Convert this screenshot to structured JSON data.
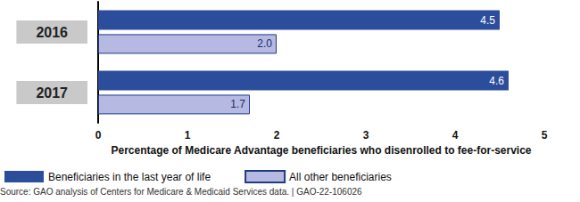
{
  "chart_data": {
    "type": "bar",
    "orientation": "horizontal",
    "categories": [
      "2016",
      "2017"
    ],
    "series": [
      {
        "name": "Beneficiaries in the last year of life",
        "color": "#2c4c9c",
        "values": [
          4.5,
          4.6
        ],
        "value_labels": [
          "4.5",
          "4.6"
        ]
      },
      {
        "name": "All other beneficiaries",
        "color": "#b6b9e2",
        "values": [
          2.0,
          1.7
        ],
        "value_labels": [
          "2.0",
          "1.7"
        ]
      }
    ],
    "xlabel": "Percentage of Medicare Advantage beneficiaries who disenrolled to fee-for-service",
    "xlim": [
      0,
      5
    ],
    "xticks": [
      0,
      1,
      2,
      3,
      4,
      5
    ],
    "grid": false,
    "legend": "bottom-left",
    "data_labels": true,
    "annotations": [
      "Source: GAO analysis of Centers for Medicare & Medicaid Services data. | GAO-22-106026"
    ]
  }
}
